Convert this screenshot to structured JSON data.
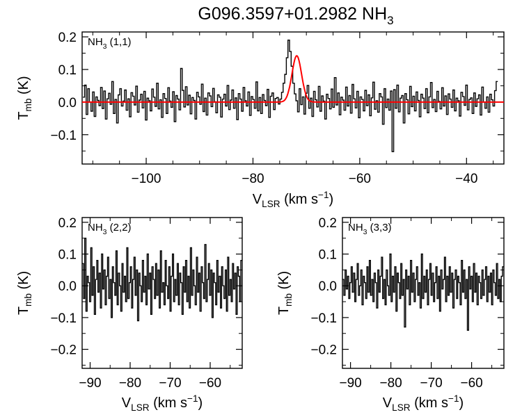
{
  "figure": {
    "title": "G096.3597+01.2982 NH",
    "title_sub": "3"
  },
  "chart_data": [
    {
      "id": "p11",
      "type": "line",
      "step": true,
      "label": "NH",
      "label_sub": "3",
      "label_tail": " (1,1)",
      "xlabel": {
        "main": "V",
        "sub": "LSR",
        "mid": " (km s",
        "sup": "−1",
        "end": ")"
      },
      "ylabel": {
        "main": "T",
        "sub": "mb",
        "end": " (K)"
      },
      "xlim": [
        -112,
        -33
      ],
      "ylim": [
        -0.19,
        0.215
      ],
      "xticks": [
        -100,
        -80,
        -60,
        -40
      ],
      "xtick_labels": [
        "−100",
        "−80",
        "−60",
        "−40"
      ],
      "yticks": [
        -0.1,
        0.0,
        0.1,
        0.2
      ],
      "ytick_labels": [
        "−0.1",
        "0.0",
        "0.1",
        "0.2"
      ],
      "x_start": -111.7,
      "x_step": 0.3,
      "values": [
        0.015,
        0.052,
        -0.038,
        0.041,
        0.0,
        -0.028,
        0.031,
        -0.044,
        0.016,
        0.005,
        -0.011,
        0.045,
        -0.02,
        0.034,
        -0.052,
        0.01,
        0.027,
        -0.007,
        0.063,
        -0.035,
        0.008,
        -0.064,
        0.022,
        0.041,
        -0.012,
        0.003,
        0.037,
        -0.025,
        0.01,
        -0.045,
        0.029,
        0.018,
        -0.009,
        0.049,
        -0.031,
        0.006,
        0.024,
        -0.018,
        0.033,
        -0.055,
        0.012,
        0.004,
        -0.027,
        0.04,
        0.015,
        -0.013,
        0.058,
        -0.021,
        0.007,
        -0.047,
        0.026,
        0.011,
        -0.035,
        0.044,
        0.003,
        -0.016,
        0.032,
        -0.06,
        0.02,
        0.009,
        -0.024,
        0.103,
        0.036,
        -0.015,
        0.047,
        -0.009,
        0.021,
        -0.036,
        0.014,
        0.005,
        -0.052,
        0.03,
        0.016,
        -0.007,
        0.055,
        -0.029,
        0.012,
        -0.04,
        0.028,
        0.019,
        -0.014,
        0.042,
        0.001,
        -0.033,
        0.022,
        0.015,
        -0.046,
        0.009,
        0.024,
        -0.012,
        0.051,
        -0.023,
        0.006,
        0.037,
        -0.019,
        0.013,
        -0.054,
        0.026,
        0.009,
        -0.028,
        0.045,
        0.004,
        -0.012,
        0.031,
        -0.041,
        0.017,
        0.008,
        -0.019,
        0.062,
        -0.027,
        0.014,
        -0.035,
        0.023,
        0.005,
        -0.011,
        0.039,
        -0.047,
        0.018,
        0.028,
        -0.023,
        0.011,
        0.014,
        -0.006,
        0.009,
        0.03,
        0.058,
        0.085,
        0.136,
        0.19,
        0.155,
        0.11,
        0.058,
        0.025,
        0.004,
        -0.03,
        0.041,
        -0.008,
        0.016,
        -0.037,
        0.027,
        0.051,
        -0.019,
        0.012,
        -0.044,
        0.033,
        0.007,
        -0.015,
        0.048,
        -0.028,
        0.019,
        0.003,
        -0.052,
        0.024,
        0.011,
        -0.021,
        0.04,
        -0.016,
        0.075,
        -0.009,
        0.028,
        -0.039,
        0.015,
        0.006,
        -0.025,
        0.046,
        -0.012,
        0.02,
        -0.034,
        0.054,
        0.01,
        -0.018,
        0.033,
        -0.048,
        0.016,
        0.008,
        -0.027,
        0.036,
        -0.011,
        0.022,
        -0.042,
        0.013,
        0.061,
        -0.022,
        0.004,
        -0.031,
        0.026,
        0.016,
        -0.068,
        0.041,
        -0.017,
        0.009,
        -0.025,
        0.034,
        -0.152,
        0.038,
        -0.019,
        0.052,
        -0.03,
        0.012,
        0.02,
        -0.064,
        0.026,
        0.007,
        -0.036,
        0.048,
        -0.014,
        0.018,
        -0.027,
        0.031,
        0.005,
        -0.045,
        0.024,
        0.012,
        -0.02,
        0.041,
        -0.033,
        0.016,
        0.06,
        -0.017,
        0.008,
        -0.029,
        0.033,
        0.002,
        -0.021,
        0.044,
        -0.012,
        0.019,
        -0.038,
        0.025,
        0.009,
        -0.016,
        0.037,
        -0.027,
        0.012,
        0.004,
        -0.043,
        0.03,
        0.017,
        -0.01,
        0.052,
        -0.024,
        0.008,
        0.013,
        -0.035,
        0.028,
        -0.013,
        0.01,
        0.022,
        -0.04,
        0.046,
        0.0,
        -0.019,
        0.016,
        -0.031,
        0.024,
        0.007,
        -0.012,
        0.035,
        0.063
      ],
      "fit": {
        "peak": 0.142,
        "center": -71.8,
        "sigma": 0.9,
        "color": "#ff0000"
      }
    },
    {
      "id": "p22",
      "type": "line",
      "step": true,
      "label": "NH",
      "label_sub": "3",
      "label_tail": " (2,2)",
      "xlabel": {
        "main": "V",
        "sub": "LSR",
        "mid": " (km s",
        "sup": "−1",
        "end": ")"
      },
      "ylabel": {
        "main": "T",
        "sub": "mb",
        "end": " (K)"
      },
      "xlim": [
        -92,
        -52
      ],
      "ylim": [
        -0.26,
        0.215
      ],
      "xticks": [
        -90,
        -80,
        -70,
        -60
      ],
      "xtick_labels": [
        "−90",
        "−80",
        "−70",
        "−60"
      ],
      "yticks": [
        -0.2,
        -0.1,
        0.0,
        0.1,
        0.2
      ],
      "ytick_labels": [
        "−0.2",
        "−0.1",
        "0.0",
        "0.1",
        "0.2"
      ],
      "x_start": -91.8,
      "x_step": 0.3,
      "values": [
        0.07,
        -0.04,
        0.15,
        -0.08,
        0.03,
        0.01,
        -0.05,
        0.12,
        -0.03,
        0.06,
        -0.09,
        0.02,
        0.08,
        -0.02,
        0.04,
        -0.07,
        0.1,
        -0.01,
        0.05,
        -0.06,
        0.03,
        0.09,
        -0.04,
        0.02,
        -0.1,
        0.06,
        0.01,
        -0.03,
        0.11,
        -0.06,
        0.04,
        0.0,
        -0.08,
        0.07,
        -0.02,
        0.03,
        -0.05,
        0.12,
        -0.04,
        0.01,
        0.06,
        -0.07,
        0.02,
        0.09,
        -0.03,
        0.05,
        -0.11,
        0.04,
        0.0,
        -0.05,
        0.08,
        -0.02,
        0.03,
        -0.06,
        0.1,
        -0.01,
        0.04,
        -0.09,
        0.06,
        0.02,
        -0.04,
        0.07,
        -0.03,
        0.05,
        -0.07,
        0.11,
        -0.02,
        0.01,
        -0.06,
        0.08,
        0.0,
        -0.04,
        0.06,
        -0.08,
        0.03,
        0.1,
        -0.05,
        0.02,
        -0.03,
        0.07,
        -0.06,
        0.04,
        0.01,
        -0.09,
        0.06,
        -0.02,
        0.08,
        -0.05,
        0.03,
        -0.07,
        0.12,
        -0.03,
        0.05,
        0.0,
        -0.06,
        0.09,
        -0.02,
        0.04,
        -0.08,
        0.06,
        0.01,
        -0.04,
        0.13,
        -0.05,
        0.02,
        0.07,
        -0.03,
        0.05,
        -0.1,
        0.04,
        0.01,
        -0.06,
        0.08,
        -0.02,
        0.03,
        -0.07,
        0.06,
        0.0,
        -0.04,
        0.05,
        -0.08,
        0.09,
        -0.03,
        0.02,
        -0.05,
        0.07,
        -0.01,
        0.04,
        -0.09,
        0.06,
        0.03,
        -0.05,
        0.08
      ],
      "fit": null
    },
    {
      "id": "p33",
      "type": "line",
      "step": true,
      "label": "NH",
      "label_sub": "3",
      "label_tail": " (3,3)",
      "xlabel": {
        "main": "V",
        "sub": "LSR",
        "mid": " (km s",
        "sup": "−1",
        "end": ")"
      },
      "ylabel": {
        "main": "T",
        "sub": "mb",
        "end": " (K)"
      },
      "xlim": [
        -92,
        -52
      ],
      "ylim": [
        -0.26,
        0.215
      ],
      "xticks": [
        -90,
        -80,
        -70,
        -60
      ],
      "xtick_labels": [
        "−90",
        "−80",
        "−70",
        "−60"
      ],
      "yticks": [
        -0.2,
        -0.1,
        0.0,
        0.1,
        0.2
      ],
      "ytick_labels": [
        "−0.2",
        "−0.1",
        "0.0",
        "0.1",
        "0.2"
      ],
      "x_start": -91.8,
      "x_step": 0.3,
      "values": [
        0.02,
        -0.03,
        0.05,
        -0.01,
        0.03,
        -0.04,
        0.01,
        0.06,
        -0.02,
        0.04,
        -0.05,
        0.02,
        0.07,
        -0.03,
        0.0,
        0.05,
        -0.06,
        0.03,
        0.01,
        -0.04,
        0.06,
        -0.02,
        0.08,
        -0.03,
        0.02,
        -0.05,
        0.04,
        0.01,
        -0.07,
        0.05,
        -0.02,
        0.03,
        0.09,
        -0.04,
        0.02,
        -0.06,
        0.05,
        0.0,
        -0.03,
        0.1,
        -0.05,
        0.03,
        -0.02,
        0.06,
        -0.08,
        0.04,
        0.01,
        -0.04,
        0.07,
        -0.03,
        0.02,
        -0.13,
        0.05,
        -0.01,
        0.03,
        -0.06,
        0.08,
        -0.02,
        0.04,
        -0.05,
        0.02,
        0.06,
        -0.03,
        0.01,
        -0.07,
        0.1,
        -0.04,
        0.03,
        -0.02,
        0.05,
        -0.06,
        0.02,
        0.07,
        -0.03,
        0.04,
        -0.05,
        0.01,
        0.06,
        -0.04,
        0.03,
        -0.08,
        0.05,
        -0.01,
        0.02,
        0.09,
        -0.05,
        0.03,
        -0.03,
        0.06,
        -0.02,
        0.04,
        -0.07,
        0.02,
        0.05,
        -0.04,
        0.03,
        0.01,
        -0.06,
        0.08,
        -0.02,
        0.05,
        -0.04,
        0.02,
        -0.14,
        0.06,
        -0.01,
        0.03,
        -0.05,
        0.07,
        -0.02,
        0.04,
        -0.06,
        0.03,
        0.01,
        -0.04,
        0.05,
        -0.03,
        0.02,
        0.06,
        -0.05,
        0.03,
        -0.02,
        0.04,
        -0.06,
        0.05,
        0.01,
        -0.03,
        0.07,
        -0.04,
        0.02,
        -0.05,
        0.03,
        0.06
      ],
      "fit": null
    }
  ]
}
